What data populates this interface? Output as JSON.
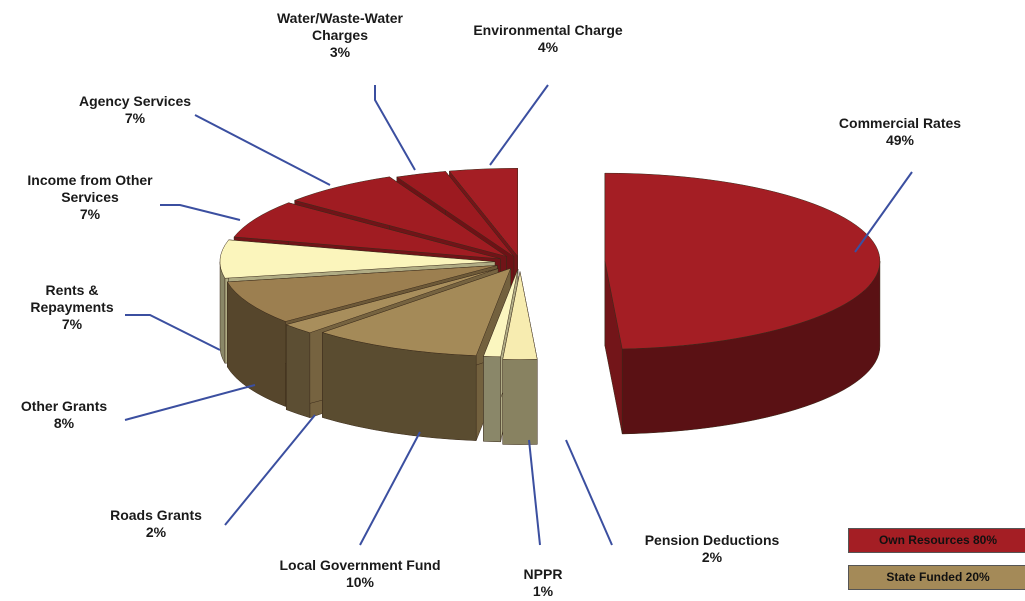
{
  "chart_data": {
    "type": "pie3d",
    "categories": [
      "Commercial Rates",
      "Pension Deductions",
      "NPPR",
      "Local Government Fund",
      "Roads Grants",
      "Other Grants",
      "Rents & Repayments",
      "Income from Other Services",
      "Agency Services",
      "Water/Waste-Water Charges",
      "Environmental Charge"
    ],
    "values": [
      49,
      2,
      1,
      10,
      2,
      8,
      7,
      7,
      7,
      3,
      4
    ],
    "value_labels": [
      "49%",
      "2%",
      "1%",
      "10%",
      "2%",
      "8%",
      "7%",
      "7%",
      "7%",
      "3%",
      "4%"
    ],
    "colors": [
      "#a41e24",
      "#f7ecb0",
      "#fbf6bf",
      "#a48a58",
      "#a88e5c",
      "#9c7f50",
      "#fbf5bc",
      "#a01c22",
      "#a01c22",
      "#9c1a20",
      "#a41e24"
    ],
    "legend": [
      {
        "label": "Own Resources 80%",
        "color": "#a41e24"
      },
      {
        "label": "State Funded 20%",
        "color": "#a48a58"
      }
    ]
  }
}
